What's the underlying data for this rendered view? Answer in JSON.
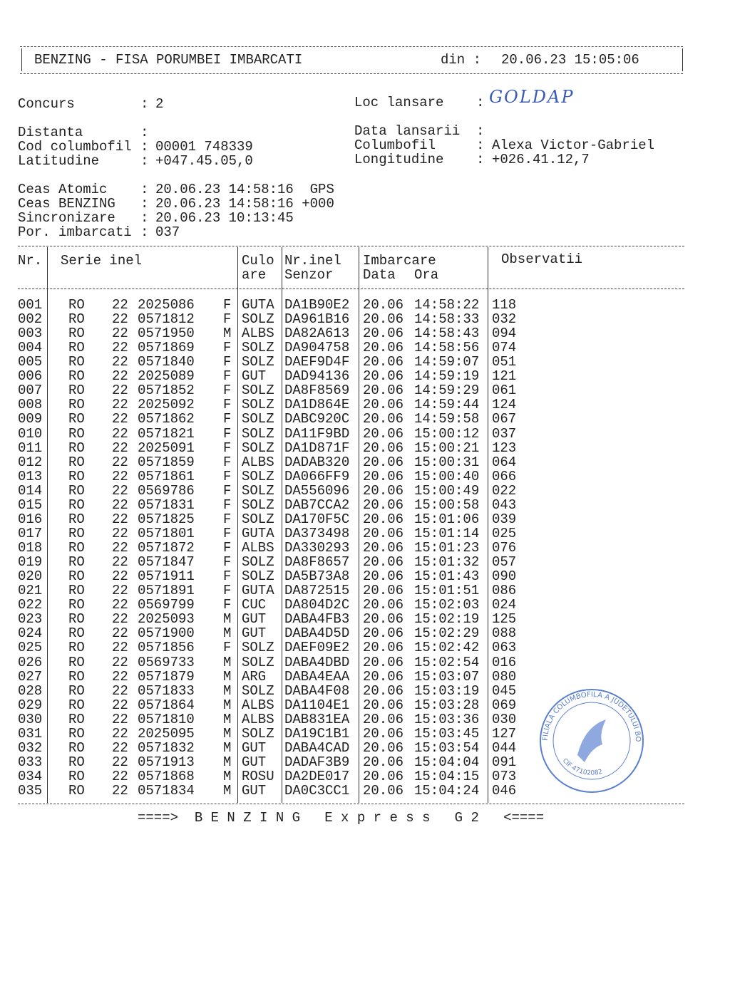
{
  "header": {
    "title": "BENZING - FISA PORUMBEI IMBARCATI",
    "din_label": "din :",
    "timestamp": "20.06.23 15:05:06"
  },
  "info_left": [
    {
      "label": "Concurs",
      "value": "2"
    },
    {
      "label": "Distanta"
    },
    {
      "label": "Cod columbofil",
      "value": "00001 748339"
    },
    {
      "label": "Latitudine",
      "value": "+047.45.05,0"
    }
  ],
  "info_right": [
    {
      "label": "Loc lansare",
      "value": "GOLDAP"
    },
    {
      "label": "Data lansarii"
    },
    {
      "label": "Columbofil",
      "value": "Alexa Victor-Gabriel"
    },
    {
      "label": "Longitudine",
      "value": "+026.41.12,7"
    }
  ],
  "clock": [
    {
      "label": "Ceas Atomic",
      "value": "20.06.23 14:58:16  GPS"
    },
    {
      "label": "Ceas BENZING",
      "value": "20.06.23 14:58:16 +000"
    },
    {
      "label": "Sincronizare",
      "value": "20.06.23 10:13:45"
    },
    {
      "label": "Por. imbarcati",
      "value": "037"
    }
  ],
  "table": {
    "headers": {
      "nr": "Nr.",
      "serie": "Serie inel",
      "culo1": "Culo",
      "culo2": "are",
      "inel1": "Nr.inel",
      "inel2": "Senzor",
      "imb1": "Imbarcare",
      "imb_data": "Data",
      "imb_ora": "Ora",
      "obs": "Observatii"
    },
    "rows": [
      [
        "001",
        "RO",
        "22",
        "2025086",
        "F",
        "GUTA",
        "DA1B90E2",
        "20.06",
        "14:58:22",
        "118"
      ],
      [
        "002",
        "RO",
        "22",
        "0571812",
        "F",
        "SOLZ",
        "DA961B16",
        "20.06",
        "14:58:33",
        "032"
      ],
      [
        "003",
        "RO",
        "22",
        "0571950",
        "M",
        "ALBS",
        "DA82A613",
        "20.06",
        "14:58:43",
        "094"
      ],
      [
        "004",
        "RO",
        "22",
        "0571869",
        "F",
        "SOLZ",
        "DA904758",
        "20.06",
        "14:58:56",
        "074"
      ],
      [
        "005",
        "RO",
        "22",
        "0571840",
        "F",
        "SOLZ",
        "DAEF9D4F",
        "20.06",
        "14:59:07",
        "051"
      ],
      [
        "006",
        "RO",
        "22",
        "2025089",
        "F",
        "GUT",
        "DAD94136",
        "20.06",
        "14:59:19",
        "121"
      ],
      [
        "007",
        "RO",
        "22",
        "0571852",
        "F",
        "SOLZ",
        "DA8F8569",
        "20.06",
        "14:59:29",
        "061"
      ],
      [
        "008",
        "RO",
        "22",
        "2025092",
        "F",
        "SOLZ",
        "DA1D864E",
        "20.06",
        "14:59:44",
        "124"
      ],
      [
        "009",
        "RO",
        "22",
        "0571862",
        "F",
        "SOLZ",
        "DABC920C",
        "20.06",
        "14:59:58",
        "067"
      ],
      [
        "010",
        "RO",
        "22",
        "0571821",
        "F",
        "SOLZ",
        "DA11F9BD",
        "20.06",
        "15:00:12",
        "037"
      ],
      [
        "011",
        "RO",
        "22",
        "2025091",
        "F",
        "SOLZ",
        "DA1D871F",
        "20.06",
        "15:00:21",
        "123"
      ],
      [
        "012",
        "RO",
        "22",
        "0571859",
        "F",
        "ALBS",
        "DADAB320",
        "20.06",
        "15:00:31",
        "064"
      ],
      [
        "013",
        "RO",
        "22",
        "0571861",
        "F",
        "SOLZ",
        "DA066FF9",
        "20.06",
        "15:00:40",
        "066"
      ],
      [
        "014",
        "RO",
        "22",
        "0569786",
        "F",
        "SOLZ",
        "DA556096",
        "20.06",
        "15:00:49",
        "022"
      ],
      [
        "015",
        "RO",
        "22",
        "0571831",
        "F",
        "SOLZ",
        "DAB7CCA2",
        "20.06",
        "15:00:58",
        "043"
      ],
      [
        "016",
        "RO",
        "22",
        "0571825",
        "F",
        "SOLZ",
        "DA170F5C",
        "20.06",
        "15:01:06",
        "039"
      ],
      [
        "017",
        "RO",
        "22",
        "0571801",
        "F",
        "GUTA",
        "DA373498",
        "20.06",
        "15:01:14",
        "025"
      ],
      [
        "018",
        "RO",
        "22",
        "0571872",
        "F",
        "ALBS",
        "DA330293",
        "20.06",
        "15:01:23",
        "076"
      ],
      [
        "019",
        "RO",
        "22",
        "0571847",
        "F",
        "SOLZ",
        "DA8F8657",
        "20.06",
        "15:01:32",
        "057"
      ],
      [
        "020",
        "RO",
        "22",
        "0571911",
        "F",
        "SOLZ",
        "DA5B73A8",
        "20.06",
        "15:01:43",
        "090"
      ],
      [
        "021",
        "RO",
        "22",
        "0571891",
        "F",
        "GUTA",
        "DA872515",
        "20.06",
        "15:01:51",
        "086"
      ],
      [
        "022",
        "RO",
        "22",
        "0569799",
        "F",
        "CUC",
        "DA804D2C",
        "20.06",
        "15:02:03",
        "024"
      ],
      [
        "023",
        "RO",
        "22",
        "2025093",
        "M",
        "GUT",
        "DABA4FB3",
        "20.06",
        "15:02:19",
        "125"
      ],
      [
        "024",
        "RO",
        "22",
        "0571900",
        "M",
        "GUT",
        "DABA4D5D",
        "20.06",
        "15:02:29",
        "088"
      ],
      [
        "025",
        "RO",
        "22",
        "0571856",
        "F",
        "SOLZ",
        "DAEF09E2",
        "20.06",
        "15:02:42",
        "063"
      ],
      [
        "026",
        "RO",
        "22",
        "0569733",
        "M",
        "SOLZ",
        "DABA4DBD",
        "20.06",
        "15:02:54",
        "016"
      ],
      [
        "027",
        "RO",
        "22",
        "0571879",
        "M",
        "ARG",
        "DABA4EAA",
        "20.06",
        "15:03:07",
        "080"
      ],
      [
        "028",
        "RO",
        "22",
        "0571833",
        "M",
        "SOLZ",
        "DABA4F08",
        "20.06",
        "15:03:19",
        "045"
      ],
      [
        "029",
        "RO",
        "22",
        "0571864",
        "M",
        "ALBS",
        "DA1104E1",
        "20.06",
        "15:03:28",
        "069"
      ],
      [
        "030",
        "RO",
        "22",
        "0571810",
        "M",
        "ALBS",
        "DAB831EA",
        "20.06",
        "15:03:36",
        "030"
      ],
      [
        "031",
        "RO",
        "22",
        "2025095",
        "M",
        "SOLZ",
        "DA19C1B1",
        "20.06",
        "15:03:45",
        "127"
      ],
      [
        "032",
        "RO",
        "22",
        "0571832",
        "M",
        "GUT",
        "DABA4CAD",
        "20.06",
        "15:03:54",
        "044"
      ],
      [
        "033",
        "RO",
        "22",
        "0571913",
        "M",
        "GUT",
        "DADAF3B9",
        "20.06",
        "15:04:04",
        "091"
      ],
      [
        "034",
        "RO",
        "22",
        "0571868",
        "M",
        "ROSU",
        "DA2DE017",
        "20.06",
        "15:04:15",
        "073"
      ],
      [
        "035",
        "RO",
        "22",
        "0571834",
        "M",
        "GUT",
        "DA0C3CC1",
        "20.06",
        "15:04:24",
        "046"
      ]
    ]
  },
  "footer": "====>  B E N Z I N G   E x p r e s s   G 2   <====",
  "stamp": {
    "text": "FILIALA COLUMBOFILA A JUDETULUI BOTOSANI A.F.C.R",
    "cif": "CIF 47102082"
  }
}
